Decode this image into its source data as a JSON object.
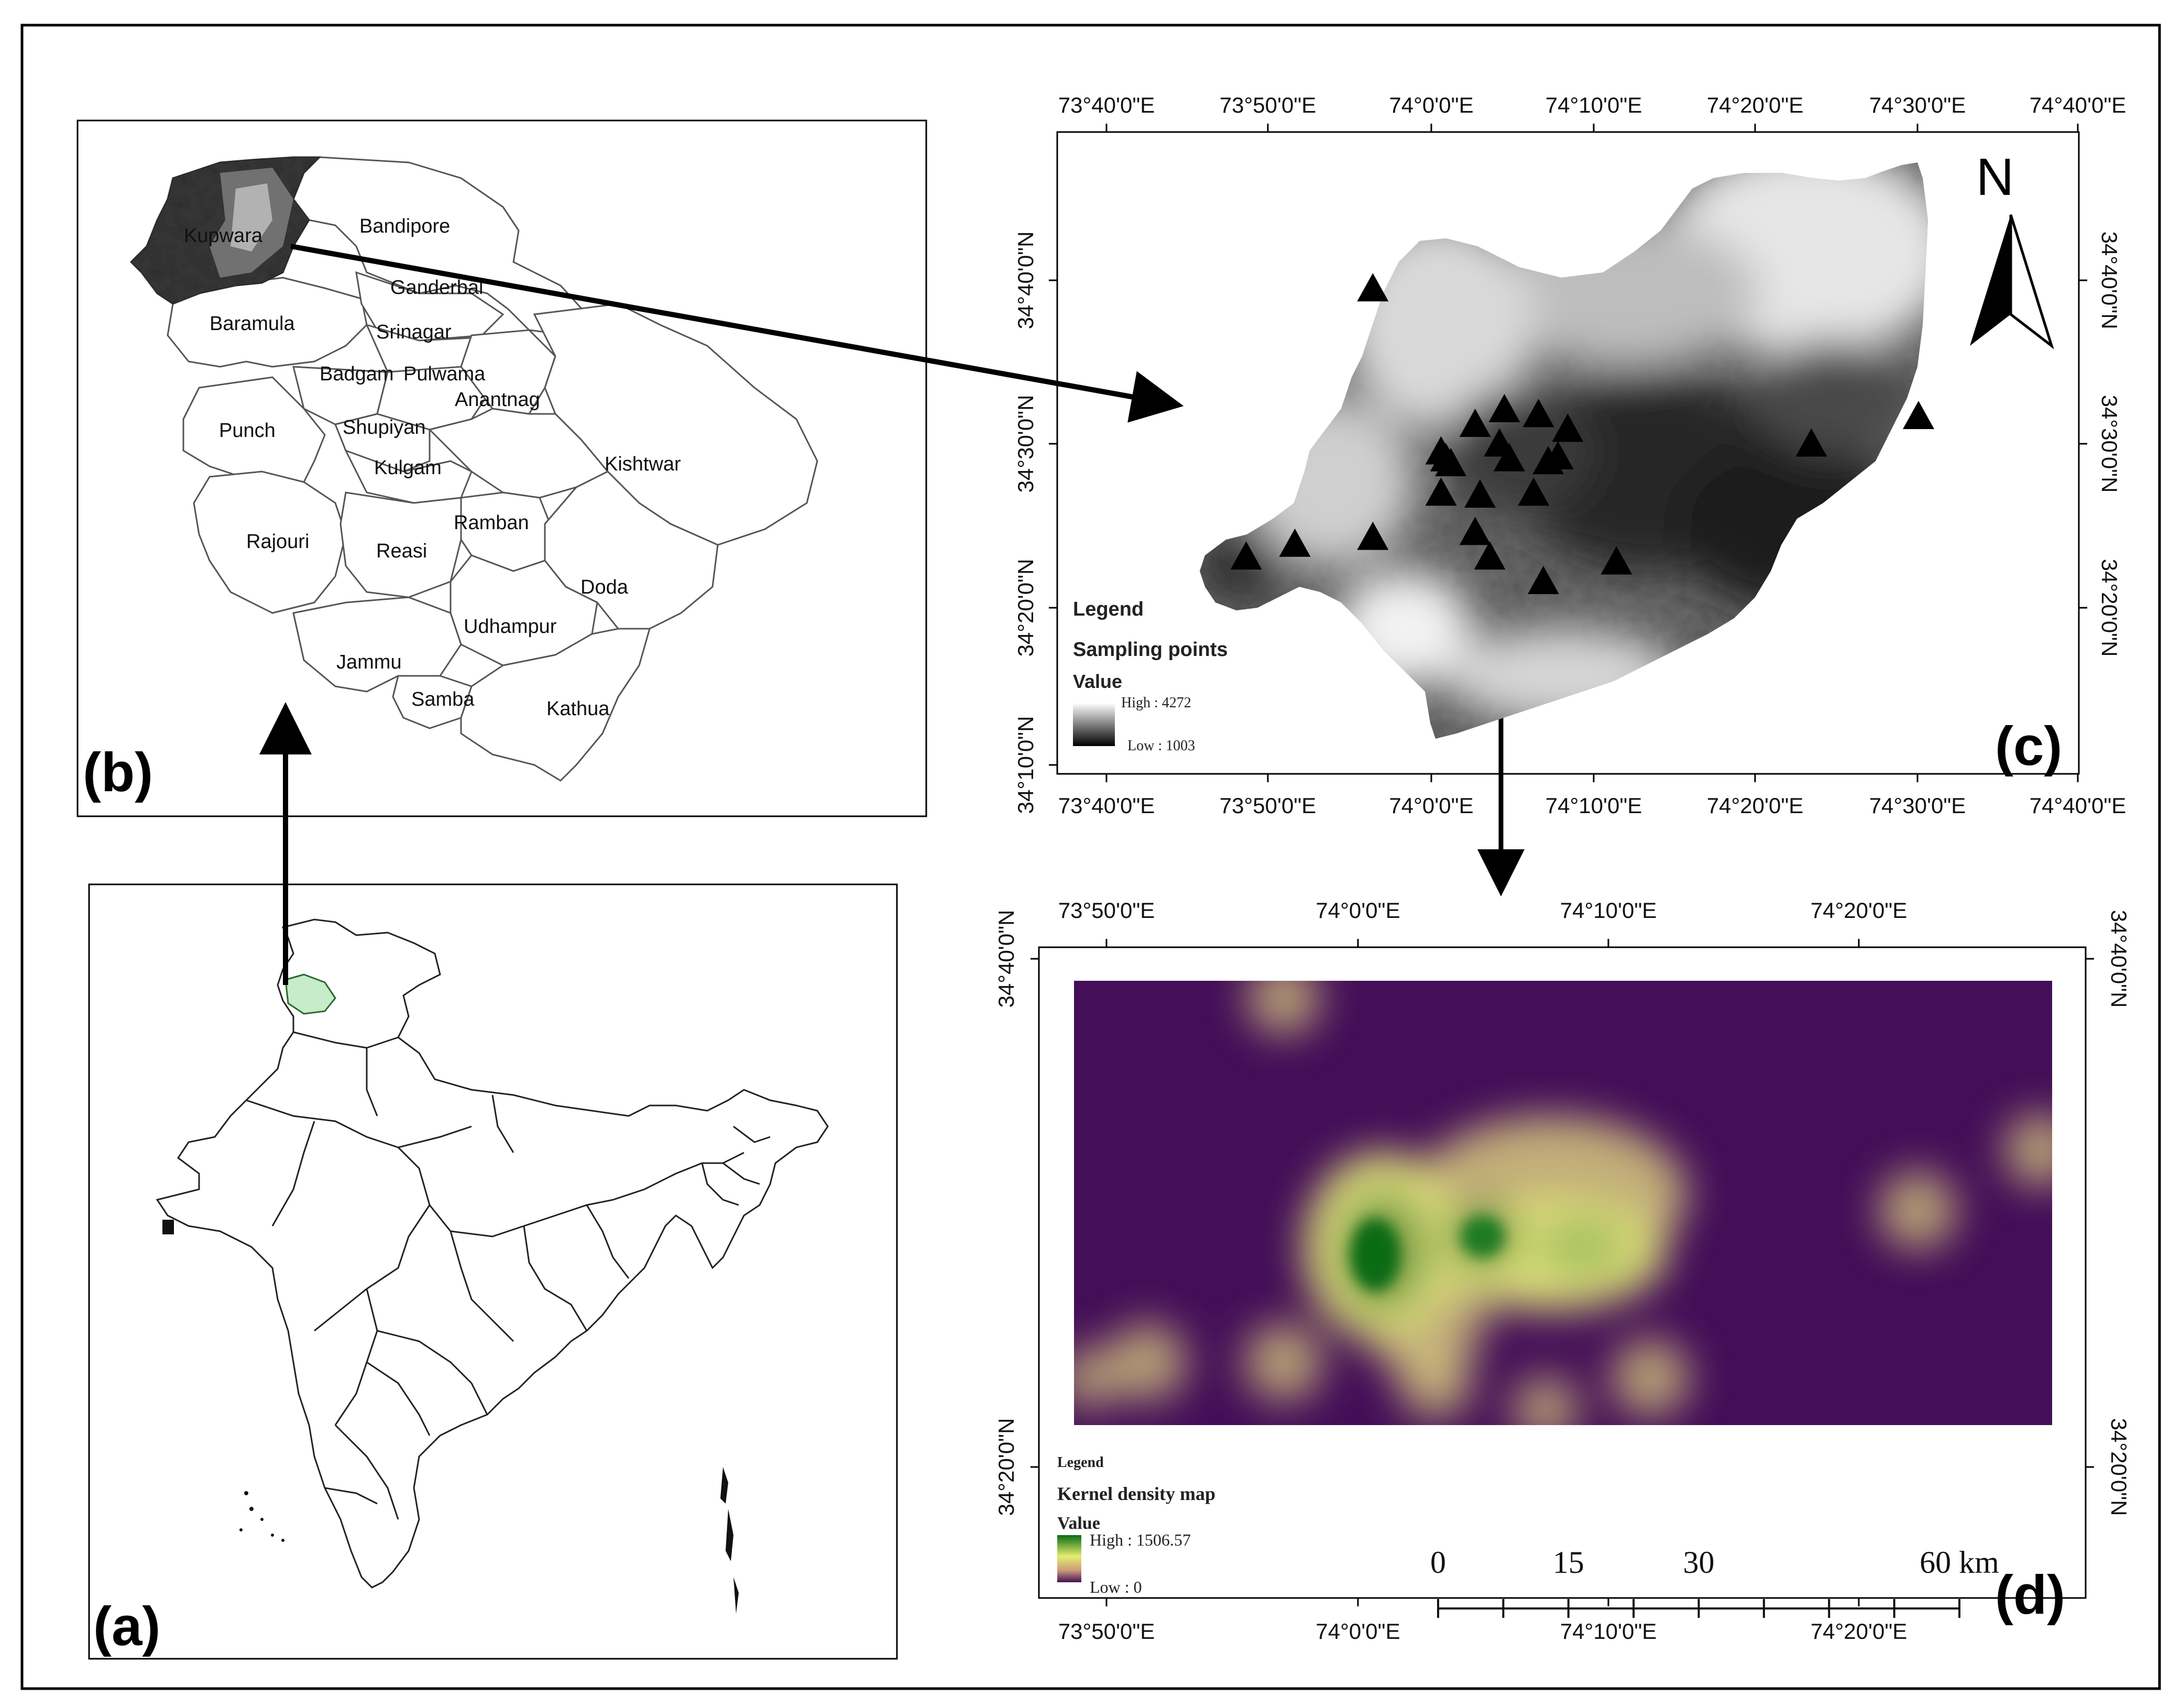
{
  "panels": {
    "a": "(a)",
    "b": "(b)",
    "c": "(c)",
    "d": "(d)"
  },
  "districts": {
    "kupwara": "Kupwara",
    "bandipore": "Bandipore",
    "ganderbal": "Ganderbal",
    "baramula": "Baramula",
    "srinagar": "Srinagar",
    "badgam": "Badgam",
    "pulwama": "Pulwama",
    "anantnag": "Anantnag",
    "punch": "Punch",
    "shupiyan": "Shupiyan",
    "kishtwar": "Kishtwar",
    "kulgam": "Kulgam",
    "ramban": "Ramban",
    "rajouri": "Rajouri",
    "reasi": "Reasi",
    "doda": "Doda",
    "udhampur": "Udhampur",
    "jammu": "Jammu",
    "samba": "Samba",
    "kathua": "Kathua"
  },
  "map_c": {
    "top_ticks": [
      "73°40'0\"E",
      "73°50'0\"E",
      "74°0'0\"E",
      "74°10'0\"E",
      "74°20'0\"E",
      "74°30'0\"E",
      "74°40'0\"E"
    ],
    "bottom_ticks": [
      "73°40'0\"E",
      "73°50'0\"E",
      "74°0'0\"E",
      "74°10'0\"E",
      "74°20'0\"E",
      "74°30'0\"E",
      "74°40'0\"E"
    ],
    "left_ticks": [
      "34°40'0\"N",
      "34°30'0\"N",
      "34°20'0\"N",
      "34°10'0\"N"
    ],
    "right_ticks": [
      "34°40'0\"N",
      "34°30'0\"N",
      "34°20'0\"N"
    ],
    "north": "N",
    "legend": {
      "title": "Legend",
      "points_label": "Sampling points",
      "value_label": "Value",
      "high": "High : 4272",
      "low": "Low : 1003"
    },
    "sampling_points": [
      [
        73.94,
        34.658
      ],
      [
        73.81,
        34.385
      ],
      [
        73.86,
        34.398
      ],
      [
        73.94,
        34.405
      ],
      [
        74.01,
        34.492
      ],
      [
        74.015,
        34.485
      ],
      [
        74.02,
        34.48
      ],
      [
        74.01,
        34.45
      ],
      [
        74.045,
        34.52
      ],
      [
        74.075,
        34.535
      ],
      [
        74.07,
        34.5
      ],
      [
        74.08,
        34.485
      ],
      [
        74.05,
        34.448
      ],
      [
        74.045,
        34.41
      ],
      [
        74.06,
        34.385
      ],
      [
        74.11,
        34.53
      ],
      [
        74.14,
        34.515
      ],
      [
        74.12,
        34.482
      ],
      [
        74.13,
        34.487
      ],
      [
        74.105,
        34.45
      ],
      [
        74.115,
        34.36
      ],
      [
        74.19,
        34.38
      ],
      [
        74.39,
        34.5
      ],
      [
        74.5,
        34.528
      ]
    ],
    "colors": {
      "high": "#ffffff",
      "low": "#000000",
      "marker": "#000000"
    }
  },
  "map_d": {
    "top_ticks": [
      "73°50'0\"E",
      "74°0'0\"E",
      "74°10'0\"E",
      "74°20'0\"E"
    ],
    "bottom_ticks": [
      "73°50'0\"E",
      "74°0'0\"E",
      "74°10'0\"E",
      "74°20'0\"E"
    ],
    "left_ticks": [
      "34°40'0\"N",
      "34°20'0\"N"
    ],
    "right_ticks": [
      "34°40'0\"N",
      "34°20'0\"N"
    ],
    "legend": {
      "title": "Legend",
      "layer": "Kernel density map",
      "value_label": "Value",
      "high": "High : 1506.57",
      "low": "Low : 0"
    },
    "scale_bar": {
      "labels": [
        "0",
        "15",
        "30",
        "60 km"
      ],
      "values": [
        0,
        15,
        30,
        60
      ]
    },
    "colors": {
      "background": "#440f58",
      "mid": "#d8c97f",
      "high": "#0b6b14",
      "yellow": "#e4ee6e"
    }
  },
  "map_a": {
    "highlight_color": "#c6ecc9"
  }
}
